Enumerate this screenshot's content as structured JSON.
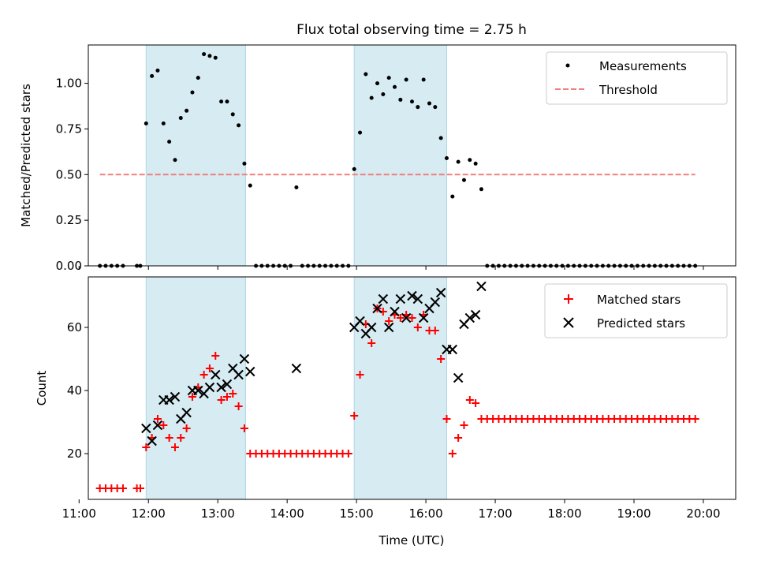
{
  "figure": {
    "title": "Flux total observing time = 2.75 h"
  },
  "chart_data": [
    {
      "type": "scatter",
      "ylabel": "Matched/Predicted stars",
      "ylim": [
        0,
        1.21
      ],
      "yticks": [
        "0.00",
        "0.25",
        "0.50",
        "0.75",
        "1.00"
      ],
      "xlim": [
        "11:08",
        "20:28"
      ],
      "shaded_regions": [
        [
          "11:58",
          "13:24"
        ],
        [
          "14:58",
          "16:18"
        ]
      ],
      "threshold": {
        "name": "Threshold",
        "value": 0.5,
        "x_range": [
          "11:18",
          "19:53"
        ],
        "color": "#f08080"
      },
      "legend": {
        "position": "top-right",
        "entries": [
          "Measurements",
          "Threshold"
        ]
      },
      "series": [
        {
          "name": "Measurements",
          "color": "#000000",
          "points": [
            [
              "11:18",
              0
            ],
            [
              "11:23",
              0
            ],
            [
              "11:28",
              0
            ],
            [
              "11:33",
              0
            ],
            [
              "11:38",
              0
            ],
            [
              "11:50",
              0
            ],
            [
              "11:53",
              0
            ],
            [
              "11:58",
              0.78
            ],
            [
              "12:03",
              1.04
            ],
            [
              "12:08",
              1.07
            ],
            [
              "12:13",
              0.78
            ],
            [
              "12:18",
              0.68
            ],
            [
              "12:23",
              0.58
            ],
            [
              "12:28",
              0.81
            ],
            [
              "12:33",
              0.85
            ],
            [
              "12:38",
              0.95
            ],
            [
              "12:43",
              1.03
            ],
            [
              "12:48",
              1.16
            ],
            [
              "12:53",
              1.15
            ],
            [
              "12:58",
              1.14
            ],
            [
              "13:03",
              0.9
            ],
            [
              "13:08",
              0.9
            ],
            [
              "13:13",
              0.83
            ],
            [
              "13:18",
              0.77
            ],
            [
              "13:23",
              0.56
            ],
            [
              "13:28",
              0.44
            ],
            [
              "13:33",
              0
            ],
            [
              "13:38",
              0
            ],
            [
              "13:43",
              0
            ],
            [
              "13:48",
              0
            ],
            [
              "13:53",
              0
            ],
            [
              "13:58",
              0
            ],
            [
              "14:03",
              0
            ],
            [
              "14:08",
              0.43
            ],
            [
              "14:13",
              0
            ],
            [
              "14:18",
              0
            ],
            [
              "14:23",
              0
            ],
            [
              "14:28",
              0
            ],
            [
              "14:33",
              0
            ],
            [
              "14:38",
              0
            ],
            [
              "14:43",
              0
            ],
            [
              "14:48",
              0
            ],
            [
              "14:53",
              0
            ],
            [
              "14:58",
              0.53
            ],
            [
              "15:03",
              0.73
            ],
            [
              "15:08",
              1.05
            ],
            [
              "15:13",
              0.92
            ],
            [
              "15:18",
              1.0
            ],
            [
              "15:23",
              0.94
            ],
            [
              "15:28",
              1.03
            ],
            [
              "15:33",
              0.98
            ],
            [
              "15:38",
              0.91
            ],
            [
              "15:43",
              1.02
            ],
            [
              "15:48",
              0.9
            ],
            [
              "15:53",
              0.87
            ],
            [
              "15:58",
              1.02
            ],
            [
              "16:03",
              0.89
            ],
            [
              "16:08",
              0.87
            ],
            [
              "16:13",
              0.7
            ],
            [
              "16:18",
              0.59
            ],
            [
              "16:23",
              0.38
            ],
            [
              "16:28",
              0.57
            ],
            [
              "16:33",
              0.47
            ],
            [
              "16:38",
              0.58
            ],
            [
              "16:43",
              0.56
            ],
            [
              "16:48",
              0.42
            ],
            [
              "16:53",
              0
            ],
            [
              "16:58",
              0
            ],
            [
              "17:03",
              0
            ],
            [
              "17:08",
              0
            ],
            [
              "17:13",
              0
            ],
            [
              "17:18",
              0
            ],
            [
              "17:23",
              0
            ],
            [
              "17:28",
              0
            ],
            [
              "17:33",
              0
            ],
            [
              "17:38",
              0
            ],
            [
              "17:43",
              0
            ],
            [
              "17:48",
              0
            ],
            [
              "17:53",
              0
            ],
            [
              "17:58",
              0
            ],
            [
              "18:03",
              0
            ],
            [
              "18:08",
              0
            ],
            [
              "18:13",
              0
            ],
            [
              "18:18",
              0
            ],
            [
              "18:23",
              0
            ],
            [
              "18:28",
              0
            ],
            [
              "18:33",
              0
            ],
            [
              "18:38",
              0
            ],
            [
              "18:43",
              0
            ],
            [
              "18:48",
              0
            ],
            [
              "18:53",
              0
            ],
            [
              "18:58",
              0
            ],
            [
              "19:03",
              0
            ],
            [
              "19:08",
              0
            ],
            [
              "19:13",
              0
            ],
            [
              "19:18",
              0
            ],
            [
              "19:23",
              0
            ],
            [
              "19:28",
              0
            ],
            [
              "19:33",
              0
            ],
            [
              "19:38",
              0
            ],
            [
              "19:43",
              0
            ],
            [
              "19:48",
              0
            ],
            [
              "19:53",
              0
            ]
          ]
        }
      ]
    },
    {
      "type": "scatter",
      "xlabel": "Time (UTC)",
      "ylabel": "Count",
      "ylim": [
        5.5,
        76
      ],
      "yticks": [
        "20",
        "40",
        "60"
      ],
      "xlim": [
        "11:08",
        "20:28"
      ],
      "xticks": [
        "11:00",
        "12:00",
        "13:00",
        "14:00",
        "15:00",
        "16:00",
        "17:00",
        "18:00",
        "19:00",
        "20:00"
      ],
      "shaded_regions": [
        [
          "11:58",
          "13:24"
        ],
        [
          "14:58",
          "16:18"
        ]
      ],
      "legend": {
        "position": "top-right",
        "entries": [
          "Matched stars",
          "Predicted stars"
        ]
      },
      "series": [
        {
          "name": "Matched stars",
          "marker": "plus",
          "color": "#ff0000",
          "points": [
            [
              "11:18",
              9
            ],
            [
              "11:23",
              9
            ],
            [
              "11:28",
              9
            ],
            [
              "11:33",
              9
            ],
            [
              "11:38",
              9
            ],
            [
              "11:50",
              9
            ],
            [
              "11:53",
              9
            ],
            [
              "11:58",
              22
            ],
            [
              "12:03",
              25
            ],
            [
              "12:08",
              31
            ],
            [
              "12:13",
              29
            ],
            [
              "12:18",
              25
            ],
            [
              "12:23",
              22
            ],
            [
              "12:28",
              25
            ],
            [
              "12:33",
              28
            ],
            [
              "12:38",
              38
            ],
            [
              "12:43",
              41
            ],
            [
              "12:48",
              45
            ],
            [
              "12:53",
              47
            ],
            [
              "12:58",
              51
            ],
            [
              "13:03",
              37
            ],
            [
              "13:08",
              38
            ],
            [
              "13:13",
              39
            ],
            [
              "13:18",
              35
            ],
            [
              "13:23",
              28
            ],
            [
              "13:28",
              20
            ],
            [
              "13:33",
              20
            ],
            [
              "13:38",
              20
            ],
            [
              "13:43",
              20
            ],
            [
              "13:48",
              20
            ],
            [
              "13:53",
              20
            ],
            [
              "13:58",
              20
            ],
            [
              "14:03",
              20
            ],
            [
              "14:08",
              20
            ],
            [
              "14:13",
              20
            ],
            [
              "14:18",
              20
            ],
            [
              "14:23",
              20
            ],
            [
              "14:28",
              20
            ],
            [
              "14:33",
              20
            ],
            [
              "14:38",
              20
            ],
            [
              "14:43",
              20
            ],
            [
              "14:48",
              20
            ],
            [
              "14:53",
              20
            ],
            [
              "14:58",
              32
            ],
            [
              "15:03",
              45
            ],
            [
              "15:08",
              61
            ],
            [
              "15:13",
              55
            ],
            [
              "15:18",
              66
            ],
            [
              "15:23",
              65
            ],
            [
              "15:28",
              62
            ],
            [
              "15:33",
              64
            ],
            [
              "15:38",
              63
            ],
            [
              "15:43",
              64
            ],
            [
              "15:48",
              63
            ],
            [
              "15:53",
              60
            ],
            [
              "15:58",
              64
            ],
            [
              "16:03",
              59
            ],
            [
              "16:08",
              59
            ],
            [
              "16:13",
              50
            ],
            [
              "16:18",
              31
            ],
            [
              "16:23",
              20
            ],
            [
              "16:28",
              25
            ],
            [
              "16:33",
              29
            ],
            [
              "16:38",
              37
            ],
            [
              "16:43",
              36
            ],
            [
              "16:48",
              31
            ],
            [
              "16:53",
              31
            ],
            [
              "16:58",
              31
            ],
            [
              "17:03",
              31
            ],
            [
              "17:08",
              31
            ],
            [
              "17:13",
              31
            ],
            [
              "17:18",
              31
            ],
            [
              "17:23",
              31
            ],
            [
              "17:28",
              31
            ],
            [
              "17:33",
              31
            ],
            [
              "17:38",
              31
            ],
            [
              "17:43",
              31
            ],
            [
              "17:48",
              31
            ],
            [
              "17:53",
              31
            ],
            [
              "17:58",
              31
            ],
            [
              "18:03",
              31
            ],
            [
              "18:08",
              31
            ],
            [
              "18:13",
              31
            ],
            [
              "18:18",
              31
            ],
            [
              "18:23",
              31
            ],
            [
              "18:28",
              31
            ],
            [
              "18:33",
              31
            ],
            [
              "18:38",
              31
            ],
            [
              "18:43",
              31
            ],
            [
              "18:48",
              31
            ],
            [
              "18:53",
              31
            ],
            [
              "18:58",
              31
            ],
            [
              "19:03",
              31
            ],
            [
              "19:08",
              31
            ],
            [
              "19:13",
              31
            ],
            [
              "19:18",
              31
            ],
            [
              "19:23",
              31
            ],
            [
              "19:28",
              31
            ],
            [
              "19:33",
              31
            ],
            [
              "19:38",
              31
            ],
            [
              "19:43",
              31
            ],
            [
              "19:48",
              31
            ],
            [
              "19:53",
              31
            ]
          ]
        },
        {
          "name": "Predicted stars",
          "marker": "x",
          "color": "#000000",
          "points": [
            [
              "11:58",
              28
            ],
            [
              "12:03",
              24
            ],
            [
              "12:08",
              29
            ],
            [
              "12:13",
              37
            ],
            [
              "12:18",
              37
            ],
            [
              "12:23",
              38
            ],
            [
              "12:28",
              31
            ],
            [
              "12:33",
              33
            ],
            [
              "12:38",
              40
            ],
            [
              "12:43",
              40
            ],
            [
              "12:48",
              39
            ],
            [
              "12:53",
              41
            ],
            [
              "12:58",
              45
            ],
            [
              "13:03",
              41
            ],
            [
              "13:08",
              42
            ],
            [
              "13:13",
              47
            ],
            [
              "13:18",
              45
            ],
            [
              "13:23",
              50
            ],
            [
              "13:28",
              46
            ],
            [
              "14:08",
              47
            ],
            [
              "14:58",
              60
            ],
            [
              "15:03",
              62
            ],
            [
              "15:08",
              58
            ],
            [
              "15:13",
              60
            ],
            [
              "15:18",
              66
            ],
            [
              "15:23",
              69
            ],
            [
              "15:28",
              60
            ],
            [
              "15:33",
              65
            ],
            [
              "15:38",
              69
            ],
            [
              "15:43",
              63
            ],
            [
              "15:48",
              70
            ],
            [
              "15:53",
              69
            ],
            [
              "15:58",
              63
            ],
            [
              "16:03",
              66
            ],
            [
              "16:08",
              68
            ],
            [
              "16:13",
              71
            ],
            [
              "16:18",
              53
            ],
            [
              "16:23",
              53
            ],
            [
              "16:28",
              44
            ],
            [
              "16:33",
              61
            ],
            [
              "16:38",
              63
            ],
            [
              "16:43",
              64
            ],
            [
              "16:48",
              73
            ]
          ]
        }
      ]
    }
  ]
}
